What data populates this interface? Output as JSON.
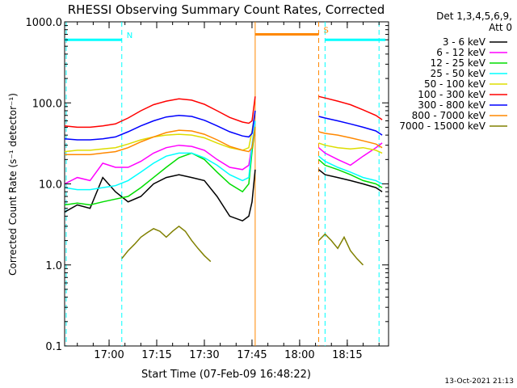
{
  "chart_data": {
    "type": "line",
    "title": "RHESSI Observing Summary Count Rates, Corrected",
    "xlabel": "Start Time (07-Feb-09 16:48:22)",
    "ylabel": "Corrected Count Rate (s⁻¹ detector⁻¹)",
    "yscale": "log",
    "ylim": [
      0.1,
      1000
    ],
    "xlim_minutes": [
      -2,
      100
    ],
    "x_ticks": [
      {
        "m": 12,
        "label": "17:00"
      },
      {
        "m": 27,
        "label": "17:15"
      },
      {
        "m": 42,
        "label": "17:30"
      },
      {
        "m": 57,
        "label": "17:45"
      },
      {
        "m": 72,
        "label": "18:00"
      },
      {
        "m": 87,
        "label": "18:15"
      }
    ],
    "y_ticks": [
      {
        "v": 1000,
        "label": "1000.0"
      },
      {
        "v": 100,
        "label": "100.0"
      },
      {
        "v": 10,
        "label": "10.0"
      },
      {
        "v": 1,
        "label": "1.0"
      },
      {
        "v": 0.1,
        "label": "0.1"
      }
    ],
    "legend": {
      "placement": "right",
      "header": [
        "Det 1,3,4,5,6,9,",
        "Att 0"
      ]
    },
    "series": [
      {
        "name": "3 - 6 keV",
        "color": "#000000",
        "x": [
          -2,
          2,
          6,
          10,
          14,
          18,
          22,
          26,
          30,
          34,
          38,
          42,
          46,
          50,
          54,
          56,
          57,
          58,
          78,
          80,
          84,
          88,
          92,
          96,
          98
        ],
        "y": [
          4.5,
          5.5,
          5,
          12,
          8,
          6,
          7,
          10,
          12,
          13,
          12,
          11,
          7,
          4,
          3.5,
          4,
          6,
          15,
          15,
          13,
          12,
          11,
          10,
          9,
          8
        ]
      },
      {
        "name": "6 - 12 keV",
        "color": "#ff00ff",
        "x": [
          -2,
          2,
          6,
          10,
          14,
          18,
          22,
          26,
          30,
          34,
          38,
          42,
          46,
          50,
          54,
          56,
          57,
          58,
          78,
          80,
          84,
          88,
          92,
          96,
          98
        ],
        "y": [
          10,
          12,
          11,
          18,
          16,
          16,
          19,
          24,
          28,
          30,
          29,
          26,
          20,
          16,
          15,
          17,
          30,
          60,
          28,
          24,
          20,
          17,
          22,
          28,
          32
        ]
      },
      {
        "name": "12 - 25 keV",
        "color": "#00dd00",
        "x": [
          -2,
          2,
          6,
          10,
          14,
          18,
          22,
          26,
          30,
          34,
          38,
          42,
          46,
          50,
          54,
          56,
          57,
          58,
          78,
          80,
          84,
          88,
          92,
          96,
          98
        ],
        "y": [
          5.5,
          5.8,
          5.5,
          6,
          6.5,
          7,
          9,
          12,
          16,
          21,
          24,
          20,
          14,
          10,
          8,
          10,
          25,
          50,
          20,
          17,
          15,
          13,
          11,
          10,
          9
        ]
      },
      {
        "name": "25 - 50 keV",
        "color": "#00ffff",
        "x": [
          -2,
          2,
          6,
          10,
          14,
          18,
          22,
          26,
          30,
          34,
          38,
          42,
          46,
          50,
          54,
          56,
          57,
          58,
          78,
          80,
          84,
          88,
          92,
          96,
          98
        ],
        "y": [
          9,
          8.5,
          8.5,
          9,
          9.5,
          11,
          14,
          18,
          22,
          24,
          24,
          21,
          17,
          13,
          11,
          12,
          30,
          60,
          22,
          19,
          16,
          14,
          12,
          11,
          10
        ]
      },
      {
        "name": "50 - 100 keV",
        "color": "#dddd00",
        "x": [
          -2,
          2,
          6,
          10,
          14,
          18,
          22,
          26,
          30,
          34,
          38,
          42,
          46,
          50,
          54,
          56,
          57,
          58,
          78,
          80,
          84,
          88,
          92,
          96,
          98
        ],
        "y": [
          25,
          26,
          26,
          27,
          28,
          31,
          35,
          38,
          40,
          41,
          40,
          37,
          32,
          28,
          26,
          28,
          45,
          80,
          32,
          30,
          28,
          27,
          28,
          26,
          24
        ]
      },
      {
        "name": "100 - 300 keV",
        "color": "#ff0000",
        "x": [
          -2,
          2,
          6,
          10,
          14,
          18,
          22,
          26,
          30,
          34,
          38,
          42,
          46,
          50,
          54,
          56,
          57,
          58,
          78,
          80,
          84,
          88,
          92,
          96,
          98
        ],
        "y": [
          52,
          50,
          50,
          52,
          55,
          65,
          80,
          95,
          105,
          112,
          108,
          96,
          80,
          66,
          58,
          56,
          60,
          120,
          120,
          115,
          105,
          95,
          82,
          70,
          62
        ]
      },
      {
        "name": "300 - 800 keV",
        "color": "#0000ff",
        "x": [
          -2,
          2,
          6,
          10,
          14,
          18,
          22,
          26,
          30,
          34,
          38,
          42,
          46,
          50,
          54,
          56,
          57,
          58,
          78,
          80,
          84,
          88,
          92,
          96,
          98
        ],
        "y": [
          36,
          35,
          35,
          36,
          38,
          44,
          52,
          60,
          67,
          70,
          68,
          61,
          52,
          44,
          39,
          38,
          42,
          80,
          68,
          65,
          60,
          55,
          50,
          45,
          40
        ]
      },
      {
        "name": "800 - 7000 keV",
        "color": "#ff8800",
        "x": [
          -2,
          2,
          6,
          10,
          14,
          18,
          22,
          26,
          30,
          34,
          38,
          42,
          46,
          50,
          54,
          56,
          57,
          58,
          78,
          80,
          84,
          88,
          92,
          96,
          98
        ],
        "y": [
          23,
          23,
          23,
          24,
          25,
          28,
          33,
          38,
          43,
          46,
          45,
          41,
          35,
          29,
          26,
          25,
          28,
          50,
          44,
          42,
          40,
          37,
          34,
          31,
          28
        ]
      },
      {
        "name": "7000 - 15000 keV",
        "color": "#808000",
        "x": [
          16,
          18,
          20,
          22,
          24,
          26,
          28,
          30,
          32,
          34,
          36,
          38,
          40,
          42,
          44,
          78,
          80,
          82,
          84,
          86,
          88,
          90,
          92
        ],
        "y": [
          1.2,
          1.5,
          1.8,
          2.2,
          2.5,
          2.8,
          2.6,
          2.2,
          2.6,
          3,
          2.6,
          2,
          1.6,
          1.3,
          1.1,
          2,
          2.4,
          2,
          1.6,
          2.2,
          1.5,
          1.2,
          1
        ]
      }
    ],
    "state_bars": [
      {
        "label": "N",
        "color": "#00ffff",
        "segments": [
          [
            -2,
            16
          ]
        ],
        "value": 600
      },
      {
        "label": "",
        "color": "#00ffff",
        "segments": [
          [
            80,
            99
          ]
        ],
        "value": 600
      },
      {
        "label": "S",
        "color": "#ff8800",
        "segments": [
          [
            58,
            78
          ]
        ],
        "value": 700
      }
    ],
    "vlines": [
      {
        "m": -1.5,
        "color": "#00ffff",
        "style": "dashed"
      },
      {
        "m": 16,
        "color": "#00ffff",
        "style": "dashed"
      },
      {
        "m": 58,
        "color": "#ff8800",
        "style": "solid"
      },
      {
        "m": 78,
        "color": "#ff8800",
        "style": "dashed"
      },
      {
        "m": 80,
        "color": "#00ffff",
        "style": "dashed"
      },
      {
        "m": 97,
        "color": "#00ffff",
        "style": "dashed"
      }
    ]
  },
  "footer_date": "13-Oct-2021 21:13"
}
